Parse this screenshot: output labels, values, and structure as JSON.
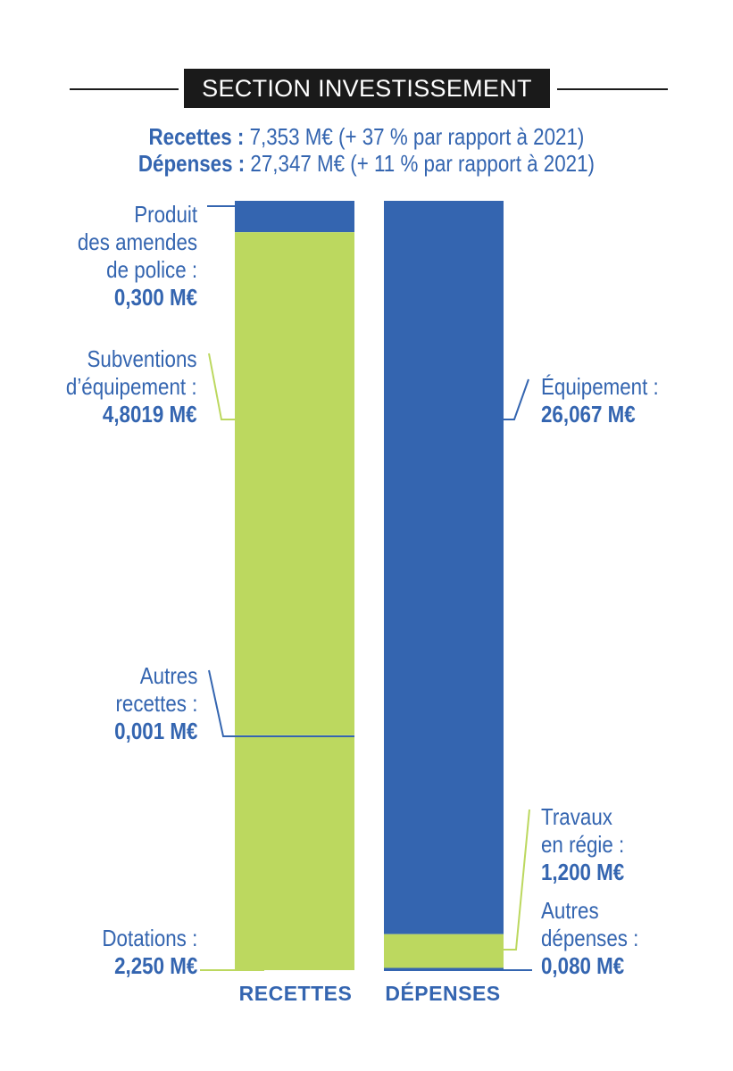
{
  "title": "SECTION INVESTISSEMENT",
  "summary": {
    "recettes_label": "Recettes :",
    "recettes_text": "7,353 M€ (+ 37 % par rapport à 2021)",
    "depenses_label": "Dépenses :",
    "depenses_text": "27,347 M€ (+ 11 % par rapport à 2021)"
  },
  "colors": {
    "blue": "#3465b0",
    "green": "#bcd85f",
    "dark": "#1a1a1a"
  },
  "chart_data": {
    "type": "bar",
    "stacked": true,
    "categories": [
      "RECETTES",
      "DÉPENSES"
    ],
    "totals": {
      "RECETTES": 7.353,
      "DÉPENSES": 27.347
    },
    "series": [
      {
        "name": "Produit des amendes de police",
        "category": "RECETTES",
        "value": 0.3,
        "value_label": "0,300 M€",
        "color": "#3465b0"
      },
      {
        "name": "Subventions d'équipement",
        "category": "RECETTES",
        "value": 4.8019,
        "value_label": "4,8019 M€",
        "color": "#bcd85f"
      },
      {
        "name": "Autres recettes",
        "category": "RECETTES",
        "value": 0.001,
        "value_label": "0,001 M€",
        "color": "#bcd85f"
      },
      {
        "name": "Dotations",
        "category": "RECETTES",
        "value": 2.25,
        "value_label": "2,250 M€",
        "color": "#bcd85f"
      },
      {
        "name": "Équipement",
        "category": "DÉPENSES",
        "value": 26.067,
        "value_label": "26,067 M€",
        "color": "#3465b0"
      },
      {
        "name": "Travaux en régie",
        "category": "DÉPENSES",
        "value": 1.2,
        "value_label": "1,200 M€",
        "color": "#bcd85f"
      },
      {
        "name": "Autres dépenses",
        "category": "DÉPENSES",
        "value": 0.08,
        "value_label": "0,080 M€",
        "color": "#3465b0"
      }
    ]
  },
  "labels": {
    "amendes": {
      "lines": [
        "Produit",
        "des amendes",
        "de police :"
      ],
      "value": "0,300 M€"
    },
    "subventions": {
      "lines": [
        "Subventions",
        "d’équipement :"
      ],
      "value": "4,8019 M€"
    },
    "autres_recettes": {
      "lines": [
        "Autres",
        "recettes :"
      ],
      "value": "0,001 M€"
    },
    "dotations": {
      "lines": [
        "Dotations :"
      ],
      "value": "2,250 M€"
    },
    "equipement": {
      "lines": [
        "Équipement :"
      ],
      "value": "26,067 M€"
    },
    "travaux": {
      "lines": [
        "Travaux",
        "en régie :"
      ],
      "value": "1,200 M€"
    },
    "autres_depenses": {
      "lines": [
        "Autres",
        "dépenses :"
      ],
      "value": "0,080 M€"
    }
  },
  "axis": {
    "recettes": "RECETTES",
    "depenses": "DÉPENSES"
  }
}
